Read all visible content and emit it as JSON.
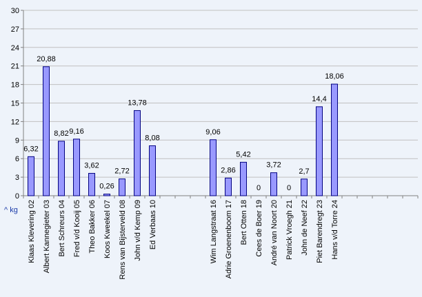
{
  "chart_data": {
    "type": "bar",
    "title": "",
    "xlabel": "",
    "ylabel": "",
    "unit_label": "^ kg",
    "ylim": [
      0,
      30
    ],
    "yticks": [
      0,
      3,
      6,
      9,
      12,
      15,
      18,
      21,
      24,
      27,
      30
    ],
    "grid": true,
    "legend": "none",
    "slot_count": 26,
    "categories": [
      "Klaas Klevering 02",
      "Albert Kannegieter 03",
      "Bert Schreurs 04",
      "Fred v/d Kooij 05",
      "Theo Bakker 06",
      "Koos Kweekel 07",
      "Rens van Bijsterveld 08",
      "John v/d Kemp 09",
      "Ed Verbaas 10",
      "",
      "",
      "",
      "Wim Langstraat 16",
      "Adrie Groenenboom 17",
      "Bert Otten 18",
      "Cees de Boer 19",
      "André van Noort 20",
      "Patrick Vroegh 21",
      "John de Neef 22",
      "Piet Barendregt 23",
      "Hans v/d Torre 24",
      "",
      "",
      "",
      "",
      ""
    ],
    "values": [
      6.32,
      20.88,
      8.82,
      9.16,
      3.62,
      0.26,
      2.72,
      13.78,
      8.08,
      null,
      null,
      null,
      9.06,
      2.86,
      5.42,
      0,
      3.72,
      0,
      2.7,
      14.4,
      18.06,
      null,
      null,
      null,
      null,
      null
    ],
    "value_labels": [
      "6,32",
      "20,88",
      "8,82",
      "9,16",
      "3,62",
      "0,26",
      "2,72",
      "13,78",
      "8,08",
      "",
      "",
      "",
      "9,06",
      "2,86",
      "5,42",
      "0",
      "3,72",
      "0",
      "2,7",
      "14,4",
      "18,06",
      "",
      "",
      "",
      "",
      ""
    ],
    "colors": {
      "bar_fill": "#9999ff",
      "bar_stroke": "#000080",
      "grid": "#c0c0c0",
      "axis": "#808080",
      "background": "#eef3fa"
    }
  }
}
